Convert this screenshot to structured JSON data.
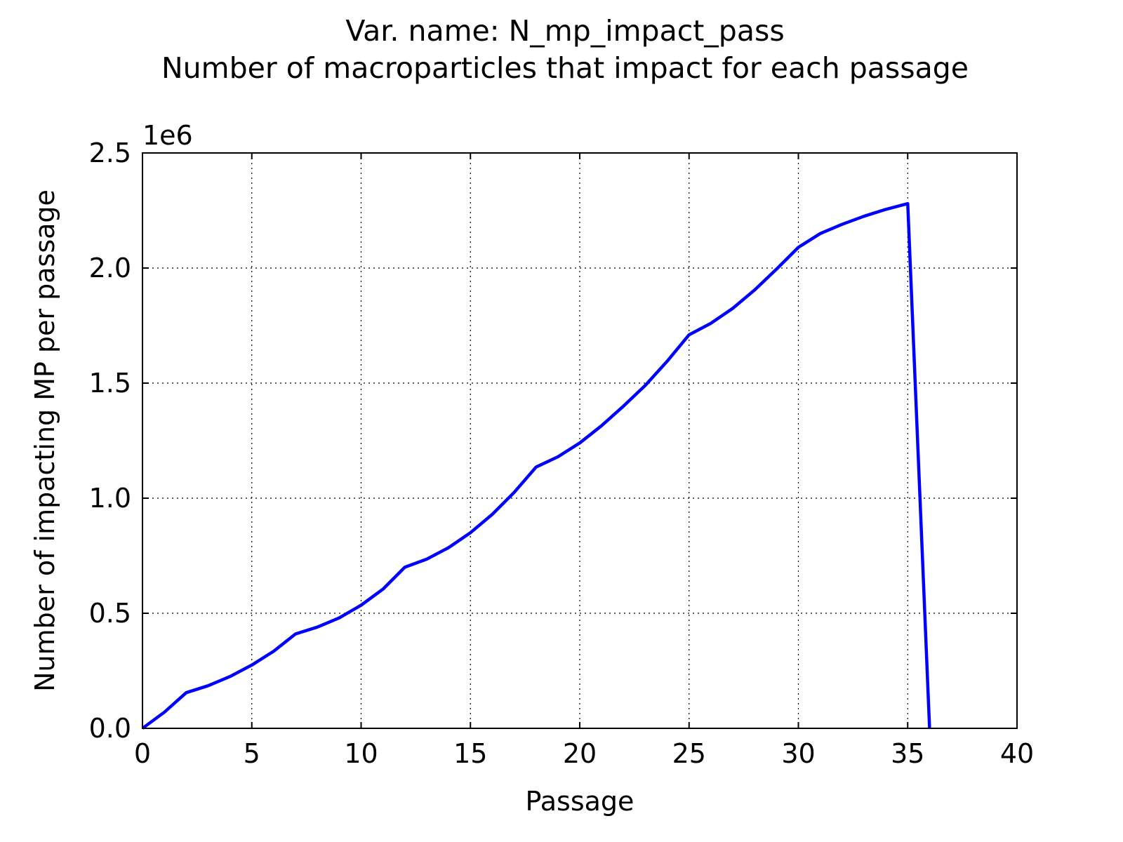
{
  "chart_data": {
    "type": "line",
    "title": "Var. name: N_mp_impact_pass",
    "subtitle": "Number of macroparticles that impact for each passage",
    "xlabel": "Passage",
    "ylabel": "Number of impacting MP per passage",
    "y_offset_label": "1e6",
    "xlim": [
      0,
      40
    ],
    "ylim": [
      0,
      2.5
    ],
    "y_scale_multiplier": 1000000,
    "grid": true,
    "x_ticks": [
      0,
      5,
      10,
      15,
      20,
      25,
      30,
      35,
      40
    ],
    "x_tick_labels": [
      "0",
      "5",
      "10",
      "15",
      "20",
      "25",
      "30",
      "35",
      "40"
    ],
    "y_ticks": [
      0,
      0.5,
      1.0,
      1.5,
      2.0,
      2.5
    ],
    "y_tick_labels": [
      "0.0",
      "0.5",
      "1.0",
      "1.5",
      "2.0",
      "2.5"
    ],
    "series": [
      {
        "color": "#0000ff",
        "x": [
          0,
          1,
          2,
          3,
          4,
          5,
          6,
          7,
          8,
          9,
          10,
          11,
          12,
          13,
          14,
          15,
          16,
          17,
          18,
          19,
          20,
          21,
          22,
          23,
          24,
          25,
          26,
          27,
          28,
          29,
          30,
          31,
          32,
          33,
          34,
          35,
          36
        ],
        "y": [
          0.0,
          0.07,
          0.155,
          0.185,
          0.225,
          0.275,
          0.335,
          0.41,
          0.44,
          0.48,
          0.535,
          0.605,
          0.7,
          0.735,
          0.785,
          0.85,
          0.93,
          1.025,
          1.135,
          1.18,
          1.24,
          1.315,
          1.4,
          1.49,
          1.595,
          1.71,
          1.76,
          1.825,
          1.905,
          1.995,
          2.09,
          2.15,
          2.19,
          2.225,
          2.255,
          2.28,
          0.0
        ]
      }
    ]
  }
}
